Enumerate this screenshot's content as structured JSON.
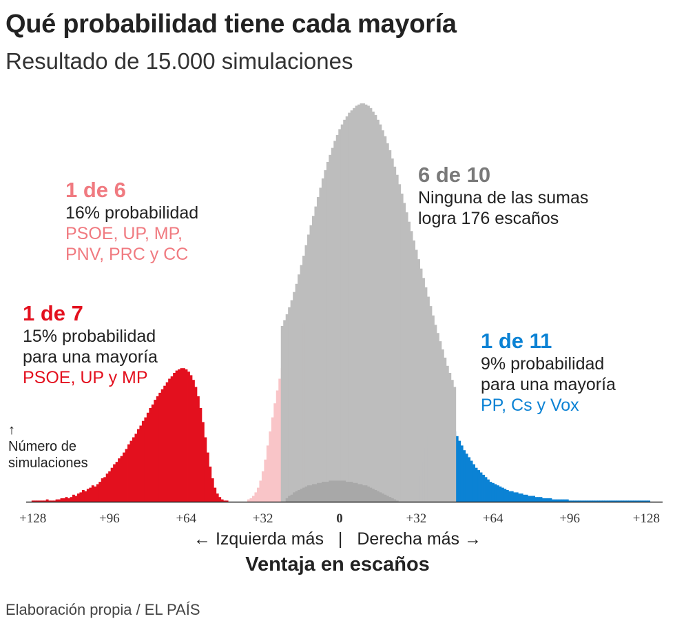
{
  "title": "Qué probabilidad tiene cada mayoría",
  "subtitle": "Resultado de 15.000 simulaciones",
  "y_axis_note": {
    "arrow": "↑",
    "line1": "Número de",
    "line2": "simulaciones"
  },
  "annotations": {
    "left_coalition": {
      "headline": "1 de 7",
      "line1": "15% probabilidad",
      "line2": "para una mayoría",
      "parties": "PSOE, UP y MP",
      "color": "#e3101e"
    },
    "left_wide": {
      "headline": "1 de 6",
      "line1": "16% probabilidad",
      "parties1": "PSOE, UP, MP,",
      "parties2": "PNV, PRC y CC",
      "color": "#f07a80"
    },
    "none": {
      "headline": "6 de 10",
      "line1": "Ninguna de las sumas",
      "line2": "logra 176 escaños",
      "color": "#7a7a7a"
    },
    "right": {
      "headline": "1 de 11",
      "line1": "9% probabilidad",
      "line2": "para una mayoría",
      "parties": "PP, Cs y Vox",
      "color": "#0b82d4"
    }
  },
  "direction_labels": {
    "left": "← Izquierda más",
    "sep": "|",
    "right": "Derecha más →"
  },
  "source": "Elaboración propia / EL PAÍS",
  "chart_data": {
    "type": "bar",
    "xlabel": "Ventaja en escaños",
    "xlim": [
      -132,
      132
    ],
    "x_ticks": [
      -128,
      -96,
      -64,
      -32,
      0,
      32,
      64,
      96,
      128
    ],
    "x_tick_labels": [
      "+128",
      "+96",
      "+64",
      "+32",
      "0",
      "+32",
      "+64",
      "+96",
      "+128"
    ],
    "colors": {
      "left": "#e3101e",
      "left_wide": "#f9c5c8",
      "none": "#bdbdbd",
      "right": "#0b82d4",
      "overlap": "#a8a8a8"
    },
    "series": [
      {
        "name": "PSOE, UP y MP",
        "x_start": -128,
        "values": [
          1,
          1,
          1,
          1,
          1,
          1,
          2,
          1,
          1,
          1,
          2,
          2,
          3,
          3,
          4,
          3,
          4,
          6,
          5,
          7,
          8,
          10,
          9,
          11,
          12,
          14,
          13,
          15,
          17,
          20,
          21,
          24,
          26,
          29,
          32,
          34,
          37,
          39,
          42,
          45,
          49,
          52,
          55,
          58,
          62,
          65,
          69,
          72,
          76,
          80,
          83,
          87,
          90,
          93,
          96,
          99,
          102,
          105,
          107,
          110,
          112,
          113,
          114,
          114,
          113,
          111,
          108,
          104,
          98,
          90,
          80,
          68,
          55,
          42,
          30,
          20,
          12,
          7,
          4,
          2,
          1,
          1
        ]
      },
      {
        "name": "PSOE, UP, MP, PNV, PRC y CC",
        "x_start": -38,
        "values": [
          2,
          3,
          5,
          8,
          12,
          18,
          26,
          36,
          48,
          60,
          72,
          84,
          95,
          105,
          114,
          122,
          129,
          135,
          140,
          144,
          148,
          150,
          152,
          153,
          153,
          152,
          150
        ]
      },
      {
        "name": "PP, Cs y Vox",
        "x_start": 32,
        "values": [
          5,
          12,
          22,
          34,
          46,
          56,
          64,
          70,
          74,
          76,
          77,
          76,
          74,
          71,
          68,
          64,
          60,
          56,
          52,
          48,
          44,
          41,
          38,
          35,
          32,
          29,
          27,
          25,
          23,
          21,
          19,
          17,
          16,
          15,
          14,
          13,
          12,
          11,
          10,
          9,
          9,
          8,
          8,
          7,
          7,
          6,
          6,
          5,
          5,
          5,
          4,
          4,
          4,
          3,
          3,
          3,
          3,
          2,
          2,
          2,
          2,
          2,
          2,
          2,
          1,
          1,
          1,
          1,
          1,
          1,
          1,
          1,
          1,
          1,
          1,
          1,
          1,
          1,
          1,
          1,
          1,
          1,
          1,
          1,
          1,
          1,
          1,
          1,
          1,
          1,
          1,
          1,
          1,
          1,
          1,
          1,
          1,
          1
        ]
      },
      {
        "name": "6 de 10",
        "x_start": -24,
        "values": [
          150,
          155,
          160,
          166,
          172,
          179,
          186,
          194,
          202,
          210,
          219,
          228,
          236,
          244,
          252,
          260,
          268,
          276,
          283,
          290,
          296,
          302,
          308,
          313,
          318,
          322,
          326,
          329,
          332,
          334,
          336,
          338,
          339,
          340,
          340,
          339,
          338,
          336,
          333,
          330,
          326,
          322,
          317,
          312,
          306,
          300,
          293,
          286,
          279,
          271,
          263,
          255,
          247,
          239,
          231,
          223,
          215,
          207,
          199,
          191,
          183,
          175,
          167,
          159,
          151,
          144,
          137,
          130,
          123,
          116,
          110,
          104,
          98
        ]
      }
    ],
    "overlap_series": {
      "x_start": -22,
      "values": [
        3,
        5,
        6,
        8,
        9,
        10,
        11,
        12,
        13,
        14,
        14,
        15,
        15,
        16,
        16,
        17,
        17,
        17,
        18,
        18,
        18,
        18,
        18,
        18,
        18,
        17,
        17,
        17,
        16,
        16,
        15,
        15,
        14,
        14,
        13,
        12,
        11,
        10,
        9,
        8,
        7,
        6,
        5,
        4,
        3,
        2,
        1
      ]
    }
  }
}
